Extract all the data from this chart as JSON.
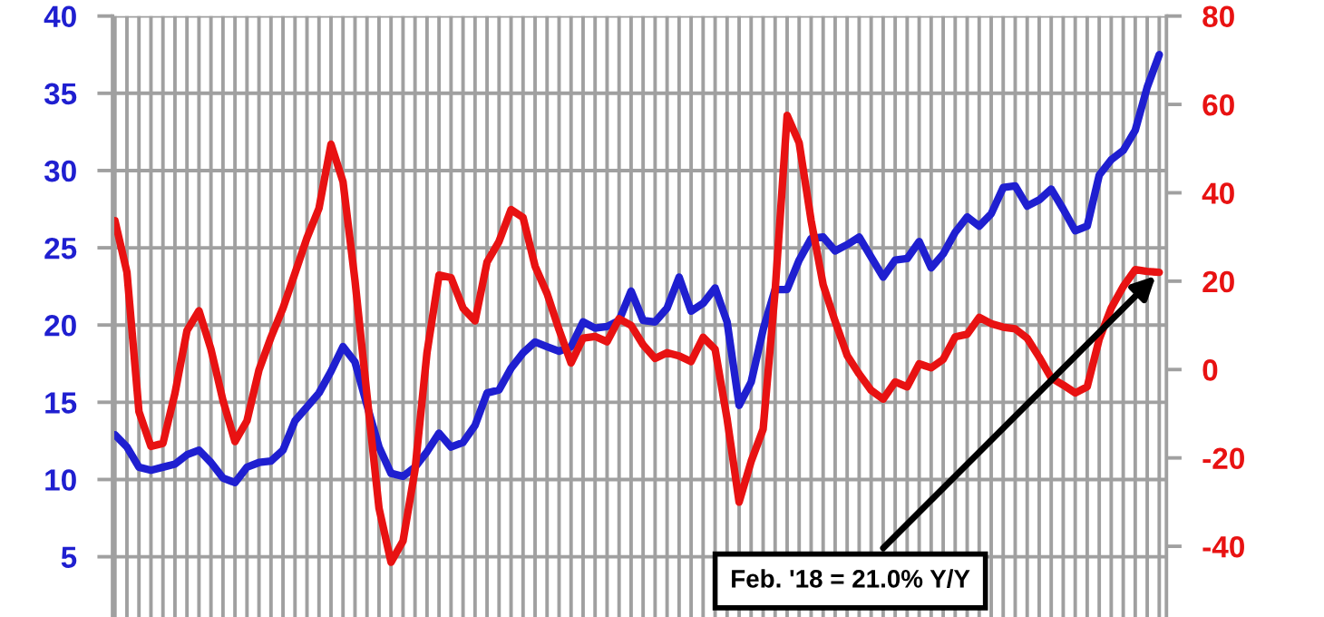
{
  "chart_data": {
    "type": "line",
    "categories": [
      null,
      null,
      null,
      null,
      null,
      null,
      null,
      null,
      null,
      null,
      null,
      null,
      null,
      null,
      null,
      null,
      null,
      null,
      null,
      null,
      null,
      null,
      null,
      null,
      null,
      null,
      null,
      null,
      null,
      null,
      null,
      null,
      null,
      null,
      null,
      null,
      null,
      null,
      null,
      null,
      null,
      null,
      null,
      null,
      null,
      null,
      null,
      null,
      null,
      null,
      null,
      null,
      null,
      null,
      null,
      null,
      null,
      null,
      null,
      null,
      null,
      null,
      null,
      null,
      null,
      null,
      null,
      null,
      null,
      null,
      null,
      null,
      null,
      null,
      null,
      null,
      null,
      null,
      null,
      null,
      null,
      null,
      null,
      null,
      null,
      null,
      null,
      null
    ],
    "ylim": [
      1.1,
      40
    ],
    "yticks": [
      5,
      10,
      15,
      20,
      25,
      30,
      35,
      40
    ],
    "y2lim": [
      -56,
      80
    ],
    "y2ticks": [
      -40,
      -20,
      0,
      20,
      40,
      60,
      80
    ],
    "grid": true,
    "marker": "none",
    "line_style": "solid",
    "series": [
      {
        "color": "#1f1fd0",
        "values": [
          12.9,
          12.1,
          10.8,
          10.6,
          10.8,
          11.0,
          11.6,
          11.9,
          11.1,
          10.1,
          9.8,
          10.8,
          11.1,
          11.2,
          11.9,
          13.8,
          14.7,
          15.6,
          17.0,
          18.6,
          17.6,
          14.8,
          12.1,
          10.4,
          10.2,
          10.8,
          11.8,
          13.0,
          12.1,
          12.4,
          13.5,
          15.6,
          15.8,
          17.2,
          18.2,
          18.9,
          18.6,
          18.3,
          18.6,
          20.2,
          19.8,
          19.9,
          20.3,
          22.2,
          20.3,
          20.2,
          21.1,
          23.1,
          20.9,
          21.4,
          22.4,
          20.2,
          14.8,
          16.3,
          19.7,
          22.3,
          22.3,
          24.2,
          25.6,
          25.7,
          24.8,
          25.2,
          25.7,
          24.4,
          23.1,
          24.2,
          24.3,
          25.4,
          23.7,
          24.6,
          26.0,
          27.0,
          26.4,
          27.2,
          28.9,
          29.0,
          27.7,
          28.1,
          28.8,
          27.5,
          26.1,
          26.4,
          29.7,
          30.7,
          31.3,
          32.6,
          35.4,
          37.5
        ]
      },
      {
        "color": "#e81212",
        "axis": "y2",
        "values": [
          33.7,
          22.0,
          -9.5,
          -17.4,
          -16.7,
          -5.4,
          8.8,
          13.3,
          4.6,
          -7.0,
          -16.3,
          -11.6,
          -0.1,
          7.3,
          13.9,
          21.8,
          29.8,
          36.5,
          51.0,
          42.5,
          20.1,
          -5.9,
          -31.4,
          -43.6,
          -38.8,
          -22.7,
          3.9,
          21.4,
          20.8,
          13.9,
          11.0,
          24.3,
          29.0,
          36.2,
          34.4,
          23.4,
          17.2,
          9.0,
          1.5,
          7.1,
          7.5,
          6.3,
          11.5,
          10.0,
          5.6,
          2.5,
          3.8,
          3.1,
          1.8,
          7.3,
          4.6,
          -11.2,
          -30.0,
          -20.8,
          -13.5,
          17.8,
          57.5,
          51.3,
          33.7,
          19.2,
          10.9,
          3.2,
          -1.0,
          -4.7,
          -6.7,
          -2.8,
          -3.9,
          1.3,
          0.4,
          2.3,
          7.4,
          8.0,
          11.8,
          10.4,
          9.6,
          9.2,
          7.1,
          2.8,
          -1.9,
          -3.5,
          -5.3,
          -3.9,
          6.9,
          13.9,
          18.8,
          22.6,
          22.2,
          22.0
        ]
      }
    ],
    "annotations": [
      "Feb. '18 = 21.0% Y/Y"
    ]
  }
}
